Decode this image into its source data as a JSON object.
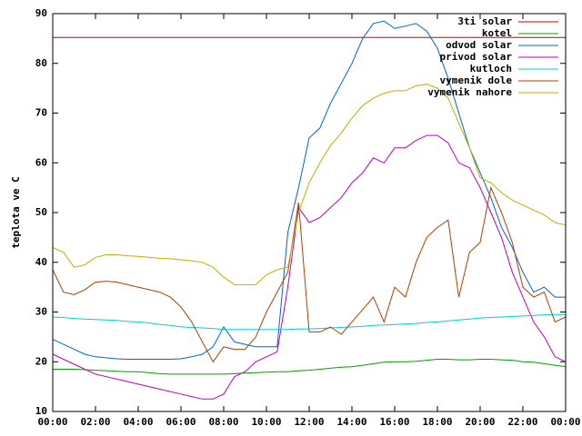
{
  "chart_data": {
    "type": "line",
    "y_label": "teplota ve C",
    "x": [
      0,
      0.5,
      1,
      1.5,
      2,
      2.5,
      3,
      3.5,
      4,
      4.5,
      5,
      5.5,
      6,
      6.5,
      7,
      7.5,
      8,
      8.5,
      9,
      9.5,
      10,
      10.5,
      11,
      11.5,
      12,
      12.5,
      13,
      13.5,
      14,
      14.5,
      15,
      15.5,
      16,
      16.5,
      17,
      17.5,
      18,
      18.5,
      19,
      19.5,
      20,
      20.5,
      21,
      21.5,
      22,
      22.5,
      23,
      23.5,
      24
    ],
    "xlim": [
      0,
      24
    ],
    "xticks": [
      {
        "value": 0,
        "label": "00:00"
      },
      {
        "value": 2,
        "label": "02:00"
      },
      {
        "value": 4,
        "label": "04:00"
      },
      {
        "value": 6,
        "label": "06:00"
      },
      {
        "value": 8,
        "label": "08:00"
      },
      {
        "value": 10,
        "label": "10:00"
      },
      {
        "value": 12,
        "label": "12:00"
      },
      {
        "value": 14,
        "label": "14:00"
      },
      {
        "value": 16,
        "label": "16:00"
      },
      {
        "value": 18,
        "label": "18:00"
      },
      {
        "value": 20,
        "label": "20:00"
      },
      {
        "value": 22,
        "label": "22:00"
      },
      {
        "value": 24,
        "label": "00:00"
      }
    ],
    "ylim": [
      10,
      90
    ],
    "yticks": [
      10,
      20,
      30,
      40,
      50,
      60,
      70,
      80,
      90
    ],
    "legend": "top-right",
    "series": [
      {
        "name": "3ti solar",
        "color": "#c80000",
        "values": [
          85.2,
          85.2,
          85.2,
          85.2,
          85.2,
          85.2,
          85.2,
          85.2,
          85.2,
          85.2,
          85.2,
          85.2,
          85.2,
          85.2,
          85.2,
          85.2,
          85.2,
          85.2,
          85.2,
          85.2,
          85.2,
          85.2,
          85.2,
          85.2,
          85.2,
          85.2,
          85.2,
          85.2,
          85.2,
          85.2,
          85.2,
          85.2,
          85.2,
          85.2,
          85.2,
          85.2,
          85.2,
          85.2,
          85.2,
          85.2,
          85.2,
          85.2,
          85.2,
          85.2,
          85.2,
          85.2,
          85.2,
          85.2,
          85.2
        ]
      },
      {
        "name": "kotel",
        "color": "#00a000",
        "values": [
          18.5,
          18.5,
          18.5,
          18.4,
          18.3,
          18.2,
          18.1,
          18,
          18,
          17.8,
          17.6,
          17.5,
          17.5,
          17.5,
          17.5,
          17.5,
          17.5,
          17.6,
          17.7,
          17.8,
          17.9,
          18,
          18,
          18.2,
          18.3,
          18.5,
          18.7,
          18.9,
          19,
          19.3,
          19.6,
          19.9,
          20,
          20,
          20.1,
          20.3,
          20.5,
          20.5,
          20.4,
          20.4,
          20.5,
          20.5,
          20.4,
          20.3,
          20,
          19.9,
          19.6,
          19.3,
          19
        ]
      },
      {
        "name": "odvod solar",
        "color": "#0066cc",
        "values": [
          24.5,
          23.5,
          22.5,
          21.5,
          21,
          20.8,
          20.6,
          20.5,
          20.5,
          20.5,
          20.5,
          20.5,
          20.6,
          21,
          21.5,
          23,
          27,
          24,
          23.5,
          23,
          23,
          23,
          46,
          55,
          65,
          67,
          72,
          76,
          80,
          85,
          88,
          88.5,
          87,
          87.5,
          88,
          86.5,
          83,
          77,
          70,
          63,
          58,
          53,
          47,
          43,
          38,
          34,
          35,
          33,
          33
        ]
      },
      {
        "name": "privod solar",
        "color": "#c000c0",
        "values": [
          21.5,
          20.5,
          19.5,
          18.5,
          17.5,
          17,
          16.5,
          16,
          15.5,
          15,
          14.5,
          14,
          13.5,
          13,
          12.5,
          12.5,
          13.5,
          17,
          18,
          20,
          21,
          22,
          35,
          51,
          48,
          49,
          51,
          53,
          56,
          58,
          61,
          60,
          63,
          63,
          64.5,
          65.5,
          65.5,
          64,
          60,
          59,
          55,
          50,
          45,
          38,
          33,
          28,
          25,
          21,
          20
        ]
      },
      {
        "name": "kutloch",
        "color": "#00d0d0",
        "values": [
          29,
          28.9,
          28.7,
          28.6,
          28.5,
          28.4,
          28.3,
          28.1,
          28,
          27.8,
          27.5,
          27.3,
          27,
          26.9,
          26.8,
          26.7,
          26.5,
          26.5,
          26.5,
          26.5,
          26.5,
          26.5,
          26.5,
          26.6,
          26.6,
          26.7,
          26.8,
          26.9,
          27,
          27.1,
          27.3,
          27.4,
          27.5,
          27.6,
          27.7,
          27.9,
          28,
          28.2,
          28.4,
          28.6,
          28.8,
          28.9,
          29,
          29.1,
          29.2,
          29.3,
          29.4,
          29.5,
          29.5
        ]
      },
      {
        "name": "vymenik dole",
        "color": "#b04000",
        "values": [
          38.5,
          34,
          33.5,
          34.5,
          36,
          36.2,
          36,
          35.5,
          35,
          34.5,
          34,
          33,
          31,
          28,
          24,
          20,
          23,
          22.5,
          22.5,
          25,
          30,
          34,
          38,
          52,
          26,
          26,
          27,
          25.5,
          28,
          30.5,
          33,
          28,
          35,
          33,
          40,
          45,
          47,
          48.5,
          33,
          42,
          44,
          55,
          50,
          44,
          35,
          33,
          34,
          28,
          29
        ]
      },
      {
        "name": "vymenik nahore",
        "color": "#c0b000",
        "values": [
          43,
          42,
          39,
          39.5,
          41,
          41.5,
          41.5,
          41.3,
          41.2,
          41,
          40.8,
          40.7,
          40.5,
          40.3,
          40,
          39,
          37,
          35.5,
          35.5,
          35.5,
          37.5,
          38.5,
          39,
          50,
          56,
          60,
          63.5,
          66,
          69,
          71.5,
          73,
          74,
          74.5,
          74.5,
          75.5,
          75.8,
          75,
          73,
          68,
          63,
          57,
          56,
          54,
          52.5,
          51.5,
          50.5,
          49.5,
          48,
          47.5
        ]
      }
    ]
  }
}
